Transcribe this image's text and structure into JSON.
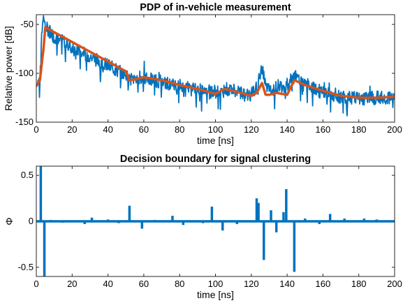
{
  "chart_data": [
    {
      "type": "line",
      "title": "PDP of in-vehicle measurement",
      "xlabel": "time [ns]",
      "ylabel": "Relative power [dB]",
      "xlim": [
        0,
        200
      ],
      "ylim": [
        -150,
        -40
      ],
      "xticks": [
        "0",
        "20",
        "40",
        "60",
        "80",
        "100",
        "120",
        "140",
        "160",
        "180",
        "200"
      ],
      "yticks": [
        "-50",
        "-100",
        "-150"
      ],
      "grid": false,
      "colors": {
        "measured": "#0072BD",
        "smoothed": "#D95319"
      },
      "series": [
        {
          "role": "measured",
          "x": [
            0,
            2,
            3,
            4,
            5,
            10,
            20,
            30,
            40,
            50,
            52,
            56,
            60,
            70,
            80,
            90,
            100,
            104,
            110,
            120,
            124,
            126,
            128,
            130,
            134,
            140,
            144,
            150,
            160,
            170,
            180,
            190,
            200
          ],
          "y": [
            -113,
            -103,
            -60,
            -42,
            -52,
            -63,
            -73,
            -83,
            -92,
            -102,
            -107,
            -104,
            -104,
            -109,
            -113,
            -116,
            -120,
            -116,
            -117,
            -122,
            -112,
            -95,
            -112,
            -118,
            -113,
            -112,
            -103,
            -111,
            -120,
            -124,
            -126,
            -125,
            -124
          ]
        },
        {
          "role": "smoothed",
          "x": [
            0,
            2,
            4,
            5,
            10,
            20,
            30,
            40,
            50,
            52,
            56,
            60,
            70,
            80,
            90,
            100,
            105,
            110,
            120,
            123,
            126,
            128,
            130,
            134,
            140,
            144,
            150,
            160,
            170,
            180,
            190,
            200
          ],
          "y": [
            -113,
            -107,
            -75,
            -53,
            -58,
            -68,
            -78,
            -88,
            -98,
            -107,
            -106,
            -104,
            -107,
            -112,
            -116,
            -121,
            -116,
            -118,
            -123,
            -120,
            -110,
            -122,
            -122,
            -120,
            -122,
            -107,
            -112,
            -118,
            -123,
            -125,
            -125,
            -124
          ]
        }
      ]
    },
    {
      "type": "bar",
      "title": "Decision boundary for signal clustering",
      "xlabel": "time [ns]",
      "ylabel": "Φ",
      "xlim": [
        0,
        200
      ],
      "ylim": [
        -0.6,
        0.6
      ],
      "xticks": [
        "0",
        "20",
        "40",
        "60",
        "80",
        "100",
        "120",
        "140",
        "160",
        "180",
        "200"
      ],
      "yticks": [
        "0.5",
        "0",
        "-0.5"
      ],
      "grid": false,
      "color": "#0072BD",
      "x": [
        2.5,
        4.5,
        8,
        15,
        27,
        31,
        40,
        46,
        52,
        59,
        66,
        76,
        82,
        93,
        98,
        104,
        112,
        123,
        124,
        127,
        131,
        134,
        138,
        139.5,
        144,
        150,
        158,
        164,
        172,
        183,
        190
      ],
      "values": [
        0.6,
        -0.6,
        0.015,
        -0.015,
        -0.03,
        0.04,
        0.02,
        -0.02,
        0.17,
        -0.08,
        0.015,
        0.06,
        -0.04,
        -0.02,
        0.16,
        -0.1,
        -0.03,
        0.25,
        0.2,
        -0.42,
        0.12,
        -0.12,
        0.1,
        0.35,
        -0.55,
        0.03,
        -0.03,
        0.08,
        0.03,
        0.03,
        0.02
      ]
    }
  ]
}
